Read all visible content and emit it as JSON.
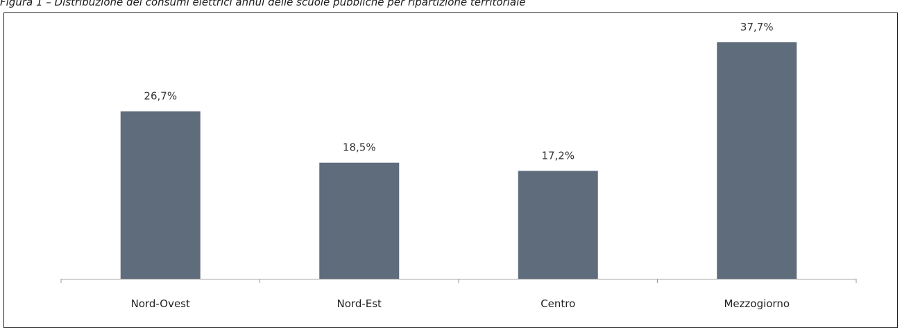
{
  "caption": "Figura 1 – Distribuzione dei consumi elettrici annui delle scuole pubbliche per ripartizione territoriale",
  "colors": {
    "bar": "#5f6c7c",
    "axis": "#9a9a9a",
    "frame": "#222222"
  },
  "chart_data": {
    "type": "bar",
    "title": "",
    "xlabel": "",
    "ylabel": "",
    "categories": [
      "Nord-Ovest",
      "Nord-Est",
      "Centro",
      "Mezzogiorno"
    ],
    "values": [
      26.7,
      18.5,
      17.2,
      37.7
    ],
    "value_labels": [
      "26,7%",
      "18,5%",
      "17,2%",
      "37,7%"
    ],
    "ylim": [
      0,
      40
    ],
    "grid": false,
    "legend": "none"
  }
}
